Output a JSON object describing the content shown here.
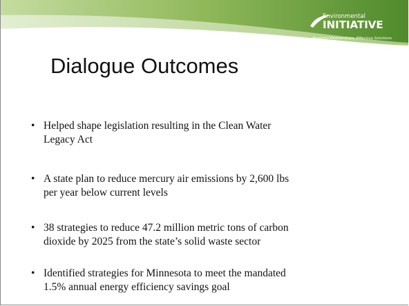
{
  "header": {
    "logo": {
      "top": "Environmental",
      "name": "INITIATIVE",
      "tagline": "Powerful Partnerships, Effective Solutions"
    }
  },
  "title": "Dialogue Outcomes",
  "bullets": [
    [
      "Helped shape legislation resulting in the Clean Water",
      "Legacy Act"
    ],
    [
      "A state plan to reduce mercury air emissions by 2,600 lbs",
      "per year below current levels"
    ],
    [
      "38 strategies to reduce 47.2 million metric tons of carbon",
      "dioxide by 2025 from the state’s solid waste sector"
    ],
    [
      "Identified strategies for Minnesota to meet the mandated",
      "1.5% annual energy efficiency savings goal"
    ]
  ]
}
